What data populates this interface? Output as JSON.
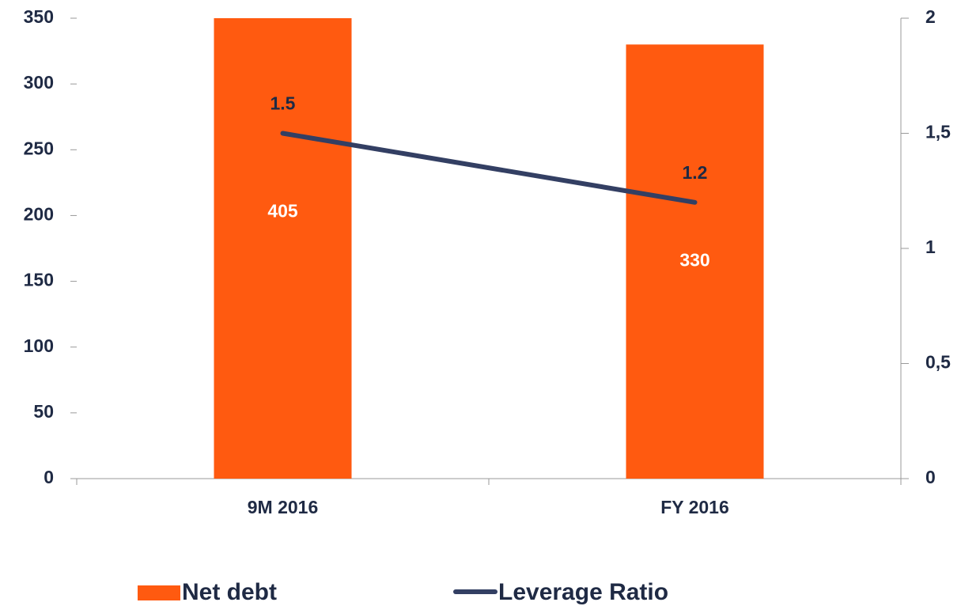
{
  "chart_data": {
    "type": "bar_line",
    "categories": [
      "9M 2016",
      "FY 2016"
    ],
    "series": [
      {
        "name": "Net debt",
        "color": "#ff5a10",
        "values": [
          405,
          330
        ]
      },
      {
        "name": "Leverage Ratio",
        "color": "#333f63",
        "values": [
          1.5,
          1.2
        ],
        "axis": "y2"
      }
    ],
    "ylim": [
      0,
      350
    ],
    "yticks": [
      0,
      50,
      100,
      150,
      200,
      250,
      300,
      350
    ],
    "y2lim": [
      0,
      2
    ],
    "y2ticks": [
      0,
      {
        "value": 0.5,
        "label": "0,5"
      },
      1,
      {
        "value": 1.5,
        "label": "1,5"
      },
      2
    ],
    "legend": "bottom"
  }
}
